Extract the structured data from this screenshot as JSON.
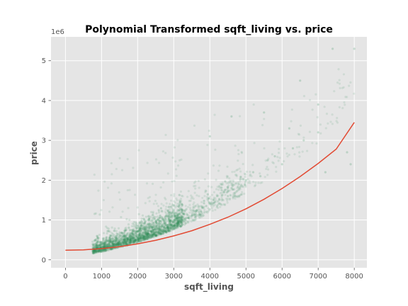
{
  "chart_data": {
    "type": "scatter",
    "title": "Polynomial Transformed sqft_living vs. price",
    "xlabel": "sqft_living",
    "ylabel": "price",
    "y_offset_label": "1e6",
    "xlim": [
      -400,
      8350
    ],
    "ylim": [
      -0.2,
      5.6
    ],
    "x_ticks": [
      0,
      1000,
      2000,
      3000,
      4000,
      5000,
      6000,
      7000,
      8000
    ],
    "x_tick_labels": [
      "0",
      "1000",
      "2000",
      "3000",
      "4000",
      "5000",
      "6000",
      "7000",
      "8000"
    ],
    "y_ticks": [
      0,
      1,
      2,
      3,
      4,
      5
    ],
    "y_tick_labels": [
      "0",
      "1",
      "2",
      "3",
      "4",
      "5"
    ],
    "grid": true,
    "style": "ggplot",
    "colors": {
      "background": "#e5e5e5",
      "grid": "#ffffff",
      "scatter": "#2e8b57",
      "fit_line": "#e24a33"
    },
    "series": [
      {
        "type": "scatter",
        "alpha": 0.1,
        "points": [
          [
            800,
            0.22
          ],
          [
            900,
            0.3
          ],
          [
            1000,
            0.32
          ],
          [
            1100,
            0.28
          ],
          [
            1200,
            0.35
          ],
          [
            1300,
            0.4
          ],
          [
            1400,
            0.38
          ],
          [
            1500,
            0.45
          ],
          [
            1600,
            0.42
          ],
          [
            1700,
            0.5
          ],
          [
            1800,
            0.48
          ],
          [
            1900,
            0.55
          ],
          [
            2000,
            0.5
          ],
          [
            2100,
            0.6
          ],
          [
            2200,
            0.58
          ],
          [
            2300,
            0.65
          ],
          [
            2400,
            0.62
          ],
          [
            2500,
            0.7
          ],
          [
            2600,
            0.68
          ],
          [
            2700,
            0.75
          ],
          [
            2800,
            0.8
          ],
          [
            2900,
            0.78
          ],
          [
            3000,
            0.85
          ],
          [
            3100,
            0.9
          ],
          [
            3200,
            0.95
          ],
          [
            3300,
            1.0
          ],
          [
            3400,
            1.05
          ],
          [
            3500,
            1.1
          ],
          [
            3600,
            1.15
          ],
          [
            3700,
            1.2
          ],
          [
            3800,
            1.3
          ],
          [
            3900,
            1.35
          ],
          [
            4000,
            1.4
          ],
          [
            4100,
            1.5
          ],
          [
            4200,
            1.6
          ],
          [
            4300,
            1.4
          ],
          [
            4400,
            1.7
          ],
          [
            4500,
            1.6
          ],
          [
            4600,
            1.8
          ],
          [
            4800,
            1.9
          ],
          [
            5000,
            2.0
          ],
          [
            5200,
            2.2
          ],
          [
            5400,
            2.1
          ],
          [
            5600,
            2.5
          ],
          [
            5800,
            2.6
          ],
          [
            6000,
            2.4
          ],
          [
            6300,
            2.8
          ],
          [
            6600,
            3.0
          ],
          [
            7000,
            3.2
          ],
          [
            7400,
            5.3
          ],
          [
            8000,
            5.3
          ],
          [
            6500,
            4.5
          ],
          [
            7000,
            3.9
          ],
          [
            5500,
            3.7
          ],
          [
            4000,
            3.1
          ],
          [
            4600,
            3.6
          ],
          [
            6200,
            3.3
          ],
          [
            7200,
            2.2
          ],
          [
            7800,
            2.7
          ],
          [
            7900,
            2.4
          ]
        ]
      },
      {
        "type": "line",
        "name": "",
        "x": [
          0,
          500,
          1000,
          1500,
          2000,
          2500,
          3000,
          3500,
          4000,
          4500,
          5000,
          5500,
          6000,
          6500,
          7000,
          7500,
          8000
        ],
        "y": [
          0.24,
          0.25,
          0.28,
          0.33,
          0.4,
          0.49,
          0.6,
          0.73,
          0.89,
          1.07,
          1.28,
          1.52,
          1.79,
          2.09,
          2.42,
          2.78,
          3.45
        ]
      }
    ]
  }
}
